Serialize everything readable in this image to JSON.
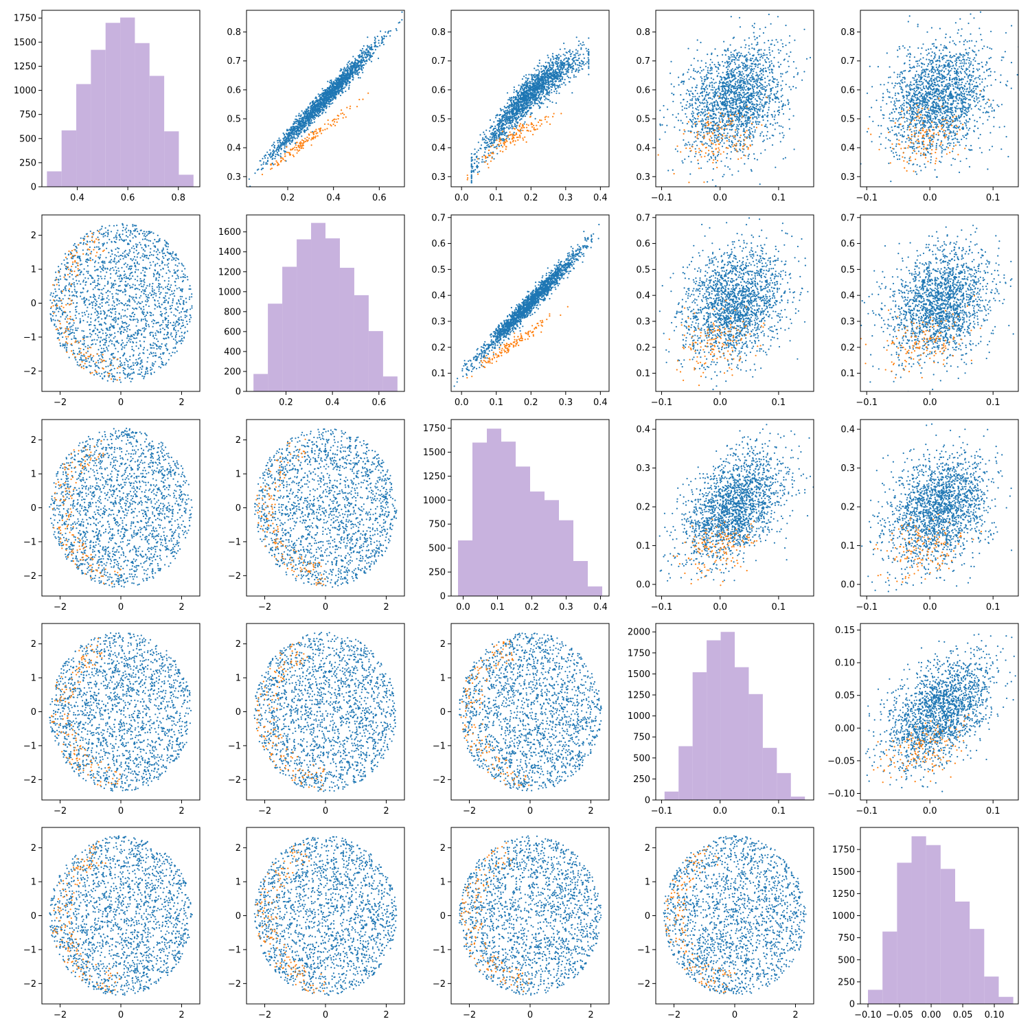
{
  "colors": {
    "scatter_primary": "#1f77b4",
    "scatter_secondary": "#ff7f0e",
    "histogram": "#c8b2de",
    "frame": "#000000",
    "background": "#ffffff"
  },
  "chart_data": {
    "type": "pair-plot",
    "grid": false,
    "legend": "none",
    "rows": 5,
    "cols": 5,
    "panels": [
      {
        "row": 0,
        "col": 0,
        "type": "bar",
        "x_range": [
          0.26,
          0.885
        ],
        "y_range": [
          0,
          1830
        ],
        "x_ticks": [
          "0.4",
          "0.6",
          "0.8"
        ],
        "y_ticks": [
          "0",
          "250",
          "500",
          "750",
          "1000",
          "1250",
          "1500",
          "1750"
        ],
        "bin_edges": [
          0.28,
          0.338,
          0.396,
          0.454,
          0.512,
          0.57,
          0.628,
          0.686,
          0.744,
          0.802,
          0.86
        ],
        "counts": [
          160,
          585,
          1065,
          1420,
          1700,
          1755,
          1490,
          1150,
          575,
          125
        ]
      },
      {
        "row": 0,
        "col": 1,
        "type": "scatter",
        "x_range": [
          0.02,
          0.71
        ],
        "y_range": [
          0.265,
          0.875
        ],
        "x_ticks": [
          "0.2",
          "0.4",
          "0.6"
        ],
        "y_ticks": [
          "0.3",
          "0.4",
          "0.5",
          "0.6",
          "0.7",
          "0.8"
        ],
        "relationship": "strong positive"
      },
      {
        "row": 0,
        "col": 2,
        "type": "scatter",
        "x_range": [
          -0.03,
          0.425
        ],
        "y_range": [
          0.265,
          0.875
        ],
        "x_ticks": [
          "0.0",
          "0.1",
          "0.2",
          "0.3",
          "0.4"
        ],
        "y_ticks": [
          "0.3",
          "0.4",
          "0.5",
          "0.6",
          "0.7",
          "0.8"
        ],
        "relationship": "positive curved"
      },
      {
        "row": 0,
        "col": 3,
        "type": "scatter",
        "x_range": [
          -0.11,
          0.16
        ],
        "y_range": [
          0.265,
          0.875
        ],
        "x_ticks": [
          "-0.1",
          "0.0",
          "0.1"
        ],
        "y_ticks": [
          "0.3",
          "0.4",
          "0.5",
          "0.6",
          "0.7",
          "0.8"
        ],
        "relationship": "weak"
      },
      {
        "row": 0,
        "col": 4,
        "type": "scatter",
        "x_range": [
          -0.11,
          0.14
        ],
        "y_range": [
          0.265,
          0.875
        ],
        "x_ticks": [
          "-0.1",
          "0.0",
          "0.1"
        ],
        "y_ticks": [
          "0.3",
          "0.4",
          "0.5",
          "0.6",
          "0.7",
          "0.8"
        ],
        "relationship": "weak"
      },
      {
        "row": 1,
        "col": 0,
        "type": "scatter",
        "x_range": [
          -2.6,
          2.6
        ],
        "y_range": [
          -2.6,
          2.6
        ],
        "x_ticks": [
          "-2",
          "0",
          "2"
        ],
        "y_ticks": [
          "-2",
          "-1",
          "0",
          "1",
          "2"
        ],
        "relationship": "none"
      },
      {
        "row": 1,
        "col": 1,
        "type": "bar",
        "x_range": [
          0.03,
          0.71
        ],
        "y_range": [
          0,
          1770
        ],
        "x_ticks": [
          "0.2",
          "0.4",
          "0.6"
        ],
        "y_ticks": [
          "0",
          "200",
          "400",
          "600",
          "800",
          "1000",
          "1200",
          "1400",
          "1600"
        ],
        "bin_edges": [
          0.06,
          0.122,
          0.184,
          0.246,
          0.308,
          0.37,
          0.432,
          0.494,
          0.556,
          0.618,
          0.68
        ],
        "counts": [
          175,
          880,
          1250,
          1525,
          1690,
          1535,
          1240,
          965,
          605,
          150
        ]
      },
      {
        "row": 1,
        "col": 2,
        "type": "scatter",
        "x_range": [
          -0.03,
          0.425
        ],
        "y_range": [
          0.03,
          0.71
        ],
        "x_ticks": [
          "0.0",
          "0.1",
          "0.2",
          "0.3",
          "0.4"
        ],
        "y_ticks": [
          "0.1",
          "0.2",
          "0.3",
          "0.4",
          "0.5",
          "0.6",
          "0.7"
        ],
        "relationship": "strong positive"
      },
      {
        "row": 1,
        "col": 3,
        "type": "scatter",
        "x_range": [
          -0.11,
          0.16
        ],
        "y_range": [
          0.03,
          0.71
        ],
        "x_ticks": [
          "-0.1",
          "0.0",
          "0.1"
        ],
        "y_ticks": [
          "0.1",
          "0.2",
          "0.3",
          "0.4",
          "0.5",
          "0.6",
          "0.7"
        ],
        "relationship": "weak"
      },
      {
        "row": 1,
        "col": 4,
        "type": "scatter",
        "x_range": [
          -0.11,
          0.14
        ],
        "y_range": [
          0.03,
          0.71
        ],
        "x_ticks": [
          "-0.1",
          "0.0",
          "0.1"
        ],
        "y_ticks": [
          "0.1",
          "0.2",
          "0.3",
          "0.4",
          "0.5",
          "0.6",
          "0.7"
        ],
        "relationship": "weak"
      },
      {
        "row": 2,
        "col": 0,
        "type": "scatter",
        "x_range": [
          -2.6,
          2.6
        ],
        "y_range": [
          -2.6,
          2.6
        ],
        "x_ticks": [
          "-2",
          "0",
          "2"
        ],
        "y_ticks": [
          "-2",
          "-1",
          "0",
          "1",
          "2"
        ],
        "relationship": "none"
      },
      {
        "row": 2,
        "col": 1,
        "type": "scatter",
        "x_range": [
          -2.6,
          2.6
        ],
        "y_range": [
          -2.6,
          2.6
        ],
        "x_ticks": [
          "-2",
          "0",
          "2"
        ],
        "y_ticks": [
          "-2",
          "-1",
          "0",
          "1",
          "2"
        ],
        "relationship": "none"
      },
      {
        "row": 2,
        "col": 2,
        "type": "bar",
        "x_range": [
          -0.035,
          0.425
        ],
        "y_range": [
          0,
          1840
        ],
        "x_ticks": [
          "0.0",
          "0.1",
          "0.2",
          "0.3",
          "0.4"
        ],
        "y_ticks": [
          "0",
          "250",
          "500",
          "750",
          "1000",
          "1250",
          "1500",
          "1750"
        ],
        "bin_edges": [
          -0.015,
          0.027,
          0.069,
          0.111,
          0.153,
          0.195,
          0.237,
          0.279,
          0.321,
          0.363,
          0.405
        ],
        "counts": [
          580,
          1600,
          1745,
          1610,
          1350,
          1090,
          1000,
          790,
          365,
          100
        ]
      },
      {
        "row": 2,
        "col": 3,
        "type": "scatter",
        "x_range": [
          -0.11,
          0.16
        ],
        "y_range": [
          -0.03,
          0.425
        ],
        "x_ticks": [
          "-0.1",
          "0.0",
          "0.1"
        ],
        "y_ticks": [
          "0.0",
          "0.1",
          "0.2",
          "0.3",
          "0.4"
        ],
        "relationship": "weak positive"
      },
      {
        "row": 2,
        "col": 4,
        "type": "scatter",
        "x_range": [
          -0.11,
          0.14
        ],
        "y_range": [
          -0.03,
          0.425
        ],
        "x_ticks": [
          "-0.1",
          "0.0",
          "0.1"
        ],
        "y_ticks": [
          "0.0",
          "0.1",
          "0.2",
          "0.3",
          "0.4"
        ],
        "relationship": "weak"
      },
      {
        "row": 3,
        "col": 0,
        "type": "scatter",
        "x_range": [
          -2.6,
          2.6
        ],
        "y_range": [
          -2.6,
          2.6
        ],
        "x_ticks": [
          "-2",
          "0",
          "2"
        ],
        "y_ticks": [
          "-2",
          "-1",
          "0",
          "1",
          "2"
        ],
        "relationship": "none"
      },
      {
        "row": 3,
        "col": 1,
        "type": "scatter",
        "x_range": [
          -2.6,
          2.6
        ],
        "y_range": [
          -2.6,
          2.6
        ],
        "x_ticks": [
          "-2",
          "0",
          "2"
        ],
        "y_ticks": [
          "-2",
          "-1",
          "0",
          "1",
          "2"
        ],
        "relationship": "none"
      },
      {
        "row": 3,
        "col": 2,
        "type": "scatter",
        "x_range": [
          -2.6,
          2.6
        ],
        "y_range": [
          -2.6,
          2.6
        ],
        "x_ticks": [
          "-2",
          "0",
          "2"
        ],
        "y_ticks": [
          "-2",
          "-1",
          "0",
          "1",
          "2"
        ],
        "relationship": "none"
      },
      {
        "row": 3,
        "col": 3,
        "type": "bar",
        "x_range": [
          -0.11,
          0.16
        ],
        "y_range": [
          0,
          2100
        ],
        "x_ticks": [
          "-0.1",
          "0.0",
          "0.1"
        ],
        "y_ticks": [
          "0",
          "250",
          "500",
          "750",
          "1000",
          "1250",
          "1500",
          "1750",
          "2000"
        ],
        "bin_edges": [
          -0.095,
          -0.071,
          -0.047,
          -0.023,
          0.001,
          0.025,
          0.049,
          0.073,
          0.097,
          0.121,
          0.145
        ],
        "counts": [
          100,
          640,
          1520,
          1900,
          2000,
          1580,
          1260,
          620,
          320,
          40
        ]
      },
      {
        "row": 3,
        "col": 4,
        "type": "scatter",
        "x_range": [
          -0.11,
          0.14
        ],
        "y_range": [
          -0.11,
          0.16
        ],
        "x_ticks": [
          "-0.1",
          "0.0",
          "0.1"
        ],
        "y_ticks": [
          "-0.10",
          "-0.05",
          "0.00",
          "0.05",
          "0.10",
          "0.15"
        ],
        "relationship": "weak positive"
      },
      {
        "row": 4,
        "col": 0,
        "type": "scatter",
        "x_range": [
          -2.6,
          2.6
        ],
        "y_range": [
          -2.6,
          2.6
        ],
        "x_ticks": [
          "-2",
          "0",
          "2"
        ],
        "y_ticks": [
          "-2",
          "-1",
          "0",
          "1",
          "2"
        ],
        "relationship": "none"
      },
      {
        "row": 4,
        "col": 1,
        "type": "scatter",
        "x_range": [
          -2.6,
          2.6
        ],
        "y_range": [
          -2.6,
          2.6
        ],
        "x_ticks": [
          "-2",
          "0",
          "2"
        ],
        "y_ticks": [
          "-2",
          "-1",
          "0",
          "1",
          "2"
        ],
        "relationship": "none"
      },
      {
        "row": 4,
        "col": 2,
        "type": "scatter",
        "x_range": [
          -2.6,
          2.6
        ],
        "y_range": [
          -2.6,
          2.6
        ],
        "x_ticks": [
          "-2",
          "0",
          "2"
        ],
        "y_ticks": [
          "-2",
          "-1",
          "0",
          "1",
          "2"
        ],
        "relationship": "none"
      },
      {
        "row": 4,
        "col": 3,
        "type": "scatter",
        "x_range": [
          -2.6,
          2.6
        ],
        "y_range": [
          -2.6,
          2.6
        ],
        "x_ticks": [
          "-2",
          "0",
          "2"
        ],
        "y_ticks": [
          "-2",
          "-1",
          "0",
          "1",
          "2"
        ],
        "relationship": "none"
      },
      {
        "row": 4,
        "col": 4,
        "type": "bar",
        "x_range": [
          -0.112,
          0.138
        ],
        "y_range": [
          0,
          2000
        ],
        "x_ticks": [
          "-0.10",
          "-0.05",
          "0.00",
          "0.05",
          "0.10"
        ],
        "y_ticks": [
          "0",
          "250",
          "500",
          "750",
          "1000",
          "1250",
          "1500",
          "1750"
        ],
        "bin_edges": [
          -0.1,
          -0.077,
          -0.054,
          -0.031,
          -0.008,
          0.015,
          0.038,
          0.061,
          0.084,
          0.107,
          0.13
        ],
        "counts": [
          160,
          820,
          1600,
          1900,
          1800,
          1530,
          1160,
          850,
          310,
          80
        ]
      }
    ]
  }
}
